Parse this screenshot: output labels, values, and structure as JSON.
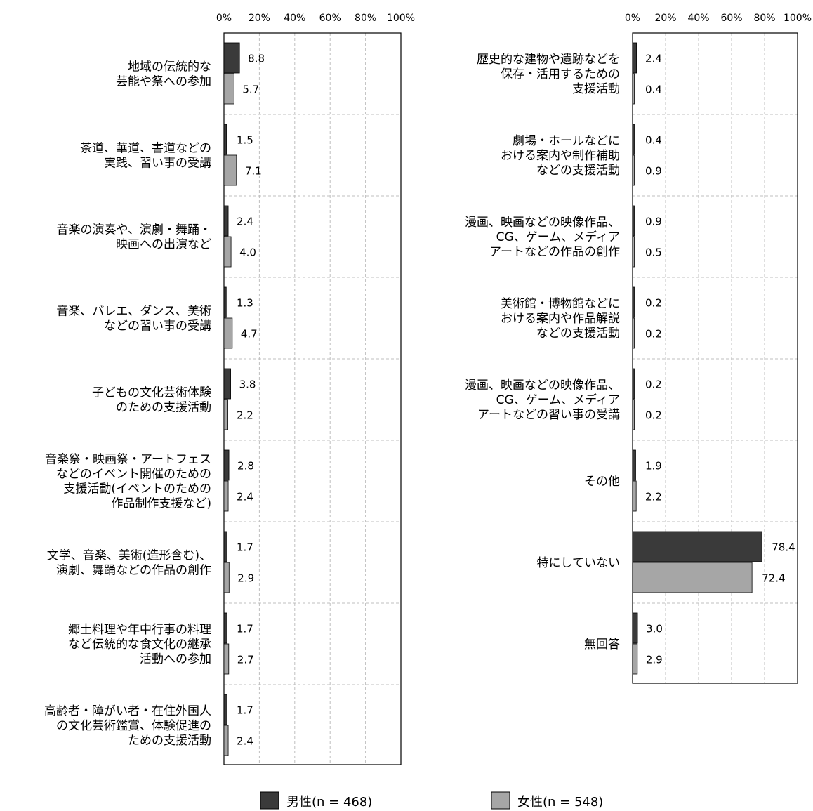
{
  "chart_data": [
    {
      "type": "bar",
      "orientation": "horizontal",
      "xlim": [
        0,
        100
      ],
      "ticks": [
        "0%",
        "20%",
        "40%",
        "60%",
        "80%",
        "100%"
      ],
      "categories": [
        [
          "地域の伝統的な",
          "芸能や祭への参加"
        ],
        [
          "茶道、華道、書道などの",
          "実践、習い事の受講"
        ],
        [
          "音楽の演奏や、演劇・舞踊・",
          "映画への出演など"
        ],
        [
          "音楽、バレエ、ダンス、美術",
          "などの習い事の受講"
        ],
        [
          "子どもの文化芸術体験",
          "のための支援活動"
        ],
        [
          "音楽祭・映画祭・アートフェス",
          "などのイベント開催のための",
          "支援活動(イベントのための",
          "作品制作支援など)"
        ],
        [
          "文学、音楽、美術(造形含む)、",
          "演劇、舞踊などの作品の創作"
        ],
        [
          "郷土料理や年中行事の料理",
          "など伝統的な食文化の継承",
          "活動への参加"
        ],
        [
          "高齢者・障がい者・在住外国人",
          "の文化芸術鑑賞、体験促進の",
          "ための支援活動"
        ]
      ],
      "series": [
        {
          "name": "男性(n = 468)",
          "values": [
            "8.8",
            "1.5",
            "2.4",
            "1.3",
            "3.8",
            "2.8",
            "1.7",
            "1.7",
            "1.7"
          ]
        },
        {
          "name": "女性(n = 548)",
          "values": [
            "5.7",
            "7.1",
            "4.0",
            "4.7",
            "2.2",
            "2.4",
            "2.9",
            "2.7",
            "2.4"
          ]
        }
      ]
    },
    {
      "type": "bar",
      "orientation": "horizontal",
      "xlim": [
        0,
        100
      ],
      "ticks": [
        "0%",
        "20%",
        "40%",
        "60%",
        "80%",
        "100%"
      ],
      "categories": [
        [
          "歴史的な建物や遺跡などを",
          "保存・活用するための",
          "支援活動"
        ],
        [
          "劇場・ホールなどに",
          "おける案内や制作補助",
          "などの支援活動"
        ],
        [
          "漫画、映画などの映像作品、",
          "CG、ゲーム、メディア",
          "アートなどの作品の創作"
        ],
        [
          "美術館・博物館などに",
          "おける案内や作品解説",
          "などの支援活動"
        ],
        [
          "漫画、映画などの映像作品、",
          "CG、ゲーム、メディア",
          "アートなどの習い事の受講"
        ],
        [
          "その他"
        ],
        [
          "特にしていない"
        ],
        [
          "無回答"
        ]
      ],
      "series": [
        {
          "name": "男性(n = 468)",
          "values": [
            "2.4",
            "0.4",
            "0.9",
            "0.2",
            "0.2",
            "1.9",
            "78.4",
            "3.0"
          ]
        },
        {
          "name": "女性(n = 548)",
          "values": [
            "0.4",
            "0.9",
            "0.5",
            "0.2",
            "0.2",
            "2.2",
            "72.4",
            "2.9"
          ]
        }
      ]
    }
  ],
  "legend": {
    "items": [
      {
        "label": "男性(n = 468)",
        "color": "#3a3a3a"
      },
      {
        "label": "女性(n = 548)",
        "color": "#a6a6a6"
      }
    ],
    "placement": "bottom"
  },
  "colors": {
    "male": "#3a3a3a",
    "female": "#a6a6a6",
    "grid": "#bfbfbf",
    "axis": "#000000"
  }
}
